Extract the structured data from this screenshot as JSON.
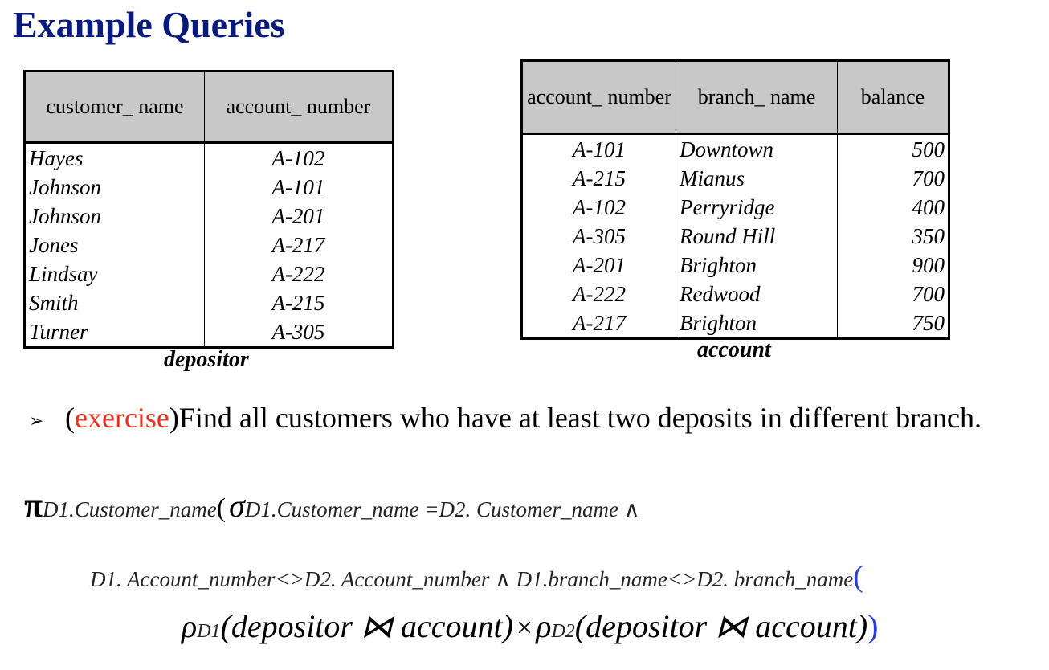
{
  "title": "Example Queries",
  "depositor": {
    "caption": "depositor",
    "headers": [
      "customer_ name",
      "account_ number"
    ],
    "rows": [
      [
        "Hayes",
        "A-102"
      ],
      [
        "Johnson",
        "A-101"
      ],
      [
        "Johnson",
        "A-201"
      ],
      [
        "Jones",
        "A-217"
      ],
      [
        "Lindsay",
        "A-222"
      ],
      [
        "Smith",
        "A-215"
      ],
      [
        "Turner",
        "A-305"
      ]
    ]
  },
  "account": {
    "caption": "account",
    "headers": [
      "account_ number",
      "branch_ name",
      "balance"
    ],
    "rows": [
      [
        "A-101",
        "Downtown",
        "500"
      ],
      [
        "A-215",
        "Mianus",
        "700"
      ],
      [
        "A-102",
        "Perryridge",
        "400"
      ],
      [
        "A-305",
        "Round Hill",
        "350"
      ],
      [
        "A-201",
        "Brighton",
        "900"
      ],
      [
        "A-222",
        "Redwood",
        "700"
      ],
      [
        "A-217",
        "Brighton",
        "750"
      ]
    ]
  },
  "exercise": {
    "bullet": "➢",
    "open_paren": "(",
    "tag": "exercise",
    "text": ")Find all customers who have at least two deposits in different branch."
  },
  "formula": {
    "pi": "π",
    "pi_sub": "D1.Customer_name",
    "open1": "(",
    "sigma": "σ",
    "sigma_sub_line1": "D1.Customer_name =D2. Customer_name ∧",
    "sigma_sub_line2": "D1. Account_number<>D2. Account_number ∧ D1.branch_name<>D2. branch_name",
    "open2": "(",
    "rho1": "ρ",
    "rho1_sub": "D1",
    "term1": "(depositor ⋈ account)",
    "times": "×",
    "rho2": "ρ",
    "rho2_sub": "D2",
    "term2": "(depositor ⋈ account)",
    "close": ")"
  }
}
